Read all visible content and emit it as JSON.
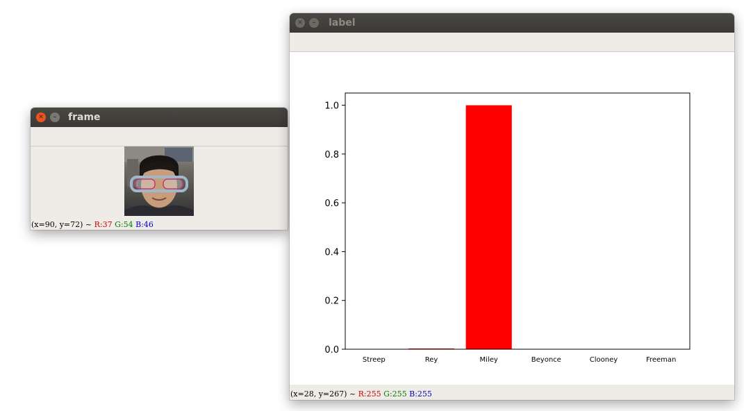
{
  "windows": {
    "frame": {
      "title": "frame",
      "status": {
        "coords": "(x=90, y=72) ~ ",
        "r": "R:37",
        "g": "G:54",
        "b": "B:46"
      }
    },
    "label": {
      "title": "label",
      "status": {
        "coords": "(x=28, y=267) ~ ",
        "r": "R:255",
        "g": "G:255",
        "b": "B:255"
      }
    }
  },
  "icons": {
    "close": "close-icon",
    "minimize": "minimize-icon"
  },
  "colors": {
    "bar": "#ff0000"
  },
  "chart_data": {
    "type": "bar",
    "categories": [
      "Streep",
      "Rey",
      "Miley",
      "Beyonce",
      "Clooney",
      "Freeman"
    ],
    "values": [
      0.0,
      0.003,
      1.0,
      0.0,
      0.0,
      0.0
    ],
    "ylim": [
      0,
      1.05
    ],
    "yticks": [
      "0.0",
      "0.2",
      "0.4",
      "0.6",
      "0.8",
      "1.0"
    ],
    "grid": false,
    "color": "#ff0000"
  }
}
